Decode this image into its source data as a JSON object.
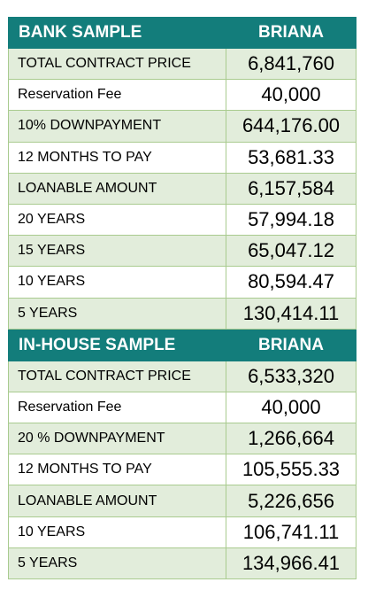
{
  "bank": {
    "header_label": "BANK SAMPLE",
    "header_value": "BRIANA",
    "rows": [
      {
        "label": "TOTAL CONTRACT PRICE",
        "value": "6,841,760"
      },
      {
        "label": "Reservation Fee",
        "value": "40,000"
      },
      {
        "label": "10% DOWNPAYMENT",
        "value": "644,176.00"
      },
      {
        "label": "12 MONTHS TO PAY",
        "value": "53,681.33"
      },
      {
        "label": "LOANABLE AMOUNT",
        "value": "6,157,584"
      },
      {
        "label": "20 YEARS",
        "value": "57,994.18"
      },
      {
        "label": "15 YEARS",
        "value": "65,047.12"
      },
      {
        "label": "10 YEARS",
        "value": "80,594.47"
      },
      {
        "label": "5 YEARS",
        "value": "130,414.11"
      }
    ]
  },
  "inhouse": {
    "header_label": "IN-HOUSE SAMPLE",
    "header_value": "BRIANA",
    "rows": [
      {
        "label": "TOTAL CONTRACT PRICE",
        "value": "6,533,320"
      },
      {
        "label": "Reservation Fee",
        "value": "40,000"
      },
      {
        "label": "20 % DOWNPAYMENT",
        "value": "1,266,664"
      },
      {
        "label": "12 MONTHS TO PAY",
        "value": "105,555.33"
      },
      {
        "label": "LOANABLE AMOUNT",
        "value": "5,226,656"
      },
      {
        "label": "10 YEARS",
        "value": "106,741.11"
      },
      {
        "label": "5 YEARS",
        "value": "134,966.41"
      }
    ]
  },
  "colors": {
    "header_bg": "#137d7b",
    "row_alt_bg": "#e2eddb",
    "border": "#a9cb8f"
  }
}
